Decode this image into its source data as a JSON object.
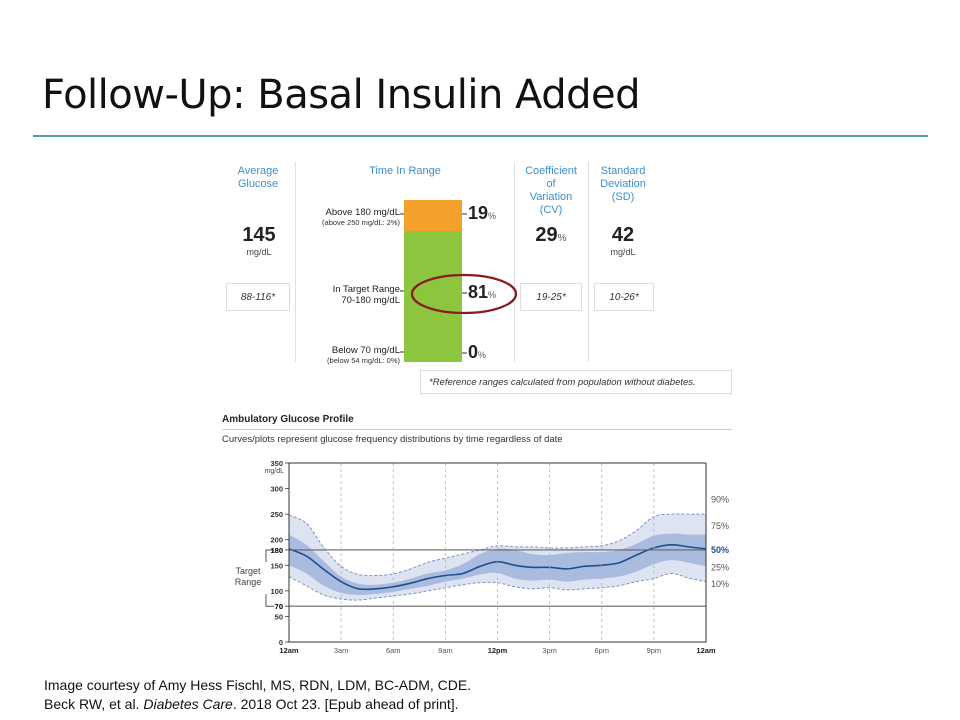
{
  "slide": {
    "title": "Follow-Up: Basal Insulin Added",
    "credit_line1": "Image courtesy of Amy Hess Fischl, MS, RDN, LDM, BC-ADM, CDE.",
    "credit_line2_pre": "Beck RW, et al. ",
    "credit_line2_journal": "Diabetes Care",
    "credit_line2_post": ". 2018 Oct 23. [Epub ahead of print]."
  },
  "metrics": {
    "avg_glucose": {
      "header_l1": "Average",
      "header_l2": "Glucose",
      "value": "145",
      "unit": "mg/dL",
      "ref": "88-116*"
    },
    "tir_header": "Time In Range",
    "cv": {
      "header_l1": "Coefficient",
      "header_l2": "of",
      "header_l3": "Variation",
      "header_l4": "(CV)",
      "value": "29",
      "pct": "%",
      "ref": "19-25*"
    },
    "sd": {
      "header_l1": "Standard",
      "header_l2": "Deviation",
      "header_l3": "(SD)",
      "value": "42",
      "unit": "mg/dL",
      "ref": "10-26*"
    },
    "footnote": "*Reference ranges calculated from population without diabetes."
  },
  "time_in_range": {
    "above": {
      "label": "Above 180 mg/dL",
      "sublabel": "(above 250 mg/dL: 2%)",
      "value": 19,
      "display": "19",
      "color": "#f5a02a"
    },
    "target": {
      "label": "In Target Range",
      "sublabel": "70-180 mg/dL",
      "value": 81,
      "display": "81",
      "color": "#8cc63e"
    },
    "below": {
      "label": "Below 70 mg/dL",
      "sublabel": "(below 54 mg/dL: 0%)",
      "value": 0,
      "display": "0",
      "color": "#d9534f"
    },
    "pct_sign": "%",
    "highlight_color": "#8b1a1a"
  },
  "agp": {
    "title": "Ambulatory Glucose Profile",
    "subtitle": "Curves/plots represent glucose frequency distributions by time regardless of date",
    "target_label_l1": "Target",
    "target_label_l2": "Range"
  },
  "chart_data": {
    "type": "area",
    "title": "Ambulatory Glucose Profile",
    "ylabel": "mg/dL",
    "ylim": [
      0,
      350
    ],
    "y_ticks": [
      0,
      50,
      70,
      100,
      150,
      180,
      200,
      250,
      300,
      350
    ],
    "x_ticks": [
      "12am",
      "3am",
      "6am",
      "9am",
      "12pm",
      "3pm",
      "6pm",
      "9pm",
      "12am"
    ],
    "x_hours": [
      0,
      3,
      6,
      9,
      12,
      15,
      18,
      21,
      24
    ],
    "target_range": [
      70,
      180
    ],
    "x": [
      0,
      1,
      2,
      3,
      4,
      5,
      6,
      7,
      8,
      9,
      10,
      11,
      12,
      13,
      14,
      15,
      16,
      17,
      18,
      19,
      20,
      21,
      22,
      23,
      24
    ],
    "series": [
      {
        "name": "90%",
        "values": [
          248,
          232,
          185,
          148,
          132,
          130,
          133,
          143,
          156,
          164,
          172,
          180,
          188,
          186,
          186,
          184,
          184,
          186,
          188,
          198,
          218,
          245,
          250,
          250,
          250
        ]
      },
      {
        "name": "75%",
        "values": [
          210,
          190,
          158,
          128,
          114,
          112,
          116,
          124,
          134,
          140,
          152,
          172,
          182,
          180,
          172,
          170,
          174,
          176,
          176,
          180,
          192,
          208,
          212,
          210,
          210
        ]
      },
      {
        "name": "50%",
        "values": [
          182,
          168,
          142,
          118,
          104,
          104,
          108,
          115,
          124,
          130,
          134,
          148,
          157,
          150,
          146,
          146,
          143,
          148,
          150,
          155,
          170,
          184,
          190,
          186,
          182
        ]
      },
      {
        "name": "25%",
        "values": [
          150,
          134,
          110,
          96,
          92,
          94,
          98,
          104,
          110,
          118,
          124,
          132,
          135,
          124,
          120,
          122,
          118,
          122,
          124,
          128,
          138,
          152,
          160,
          155,
          148
        ]
      },
      {
        "name": "10%",
        "values": [
          128,
          110,
          92,
          84,
          82,
          86,
          90,
          94,
          100,
          106,
          112,
          116,
          116,
          108,
          104,
          106,
          102,
          104,
          106,
          110,
          118,
          124,
          134,
          125,
          118
        ]
      }
    ],
    "colors": {
      "outer_band": "#dde3f0",
      "inner_band": "#a9bcdf",
      "median": "#1f4f8f",
      "label_median": "#1f4f8f"
    }
  }
}
